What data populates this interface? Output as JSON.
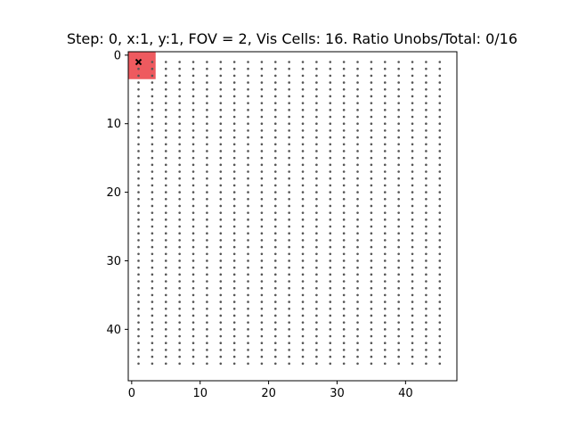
{
  "chart_data": {
    "type": "scatter",
    "title": "Step: 0, x:1, y:1, FOV = 2, Vis Cells: 16. Ratio Unobs/Total: 0/16",
    "xlabel": "",
    "ylabel": "",
    "xlim": [
      -0.5,
      47.5
    ],
    "ylim": [
      47.5,
      -0.5
    ],
    "y_axis_inverted": true,
    "x_ticks": [
      0,
      10,
      20,
      30,
      40
    ],
    "y_ticks": [
      0,
      10,
      20,
      30,
      40
    ],
    "x_tick_labels": [
      "0",
      "10",
      "20",
      "30",
      "40"
    ],
    "y_tick_labels": [
      "0",
      "10",
      "20",
      "30",
      "40"
    ],
    "grid": false,
    "grid_points": {
      "x_start": 1,
      "x_end": 45,
      "x_step": 2,
      "y_start": 1,
      "y_end": 45,
      "y_step": 1,
      "marker": "dot",
      "color": "#555555"
    },
    "visible_region": {
      "x_range": [
        -0.5,
        3.5
      ],
      "y_range": [
        -0.5,
        3.5
      ],
      "color": "#ee5a5f"
    },
    "agent": {
      "x": 1,
      "y": 1,
      "marker": "x",
      "color": "#000000"
    },
    "step": 0,
    "fov": 2,
    "visible_cells": 16,
    "unobserved": 0,
    "total": 16
  }
}
